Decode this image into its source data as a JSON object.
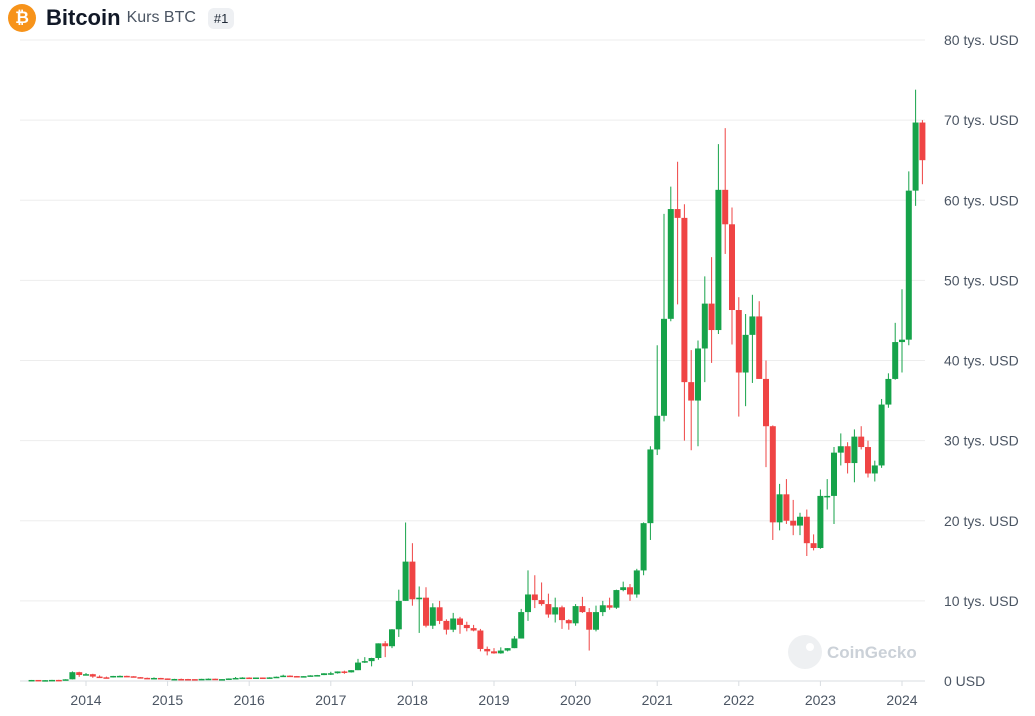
{
  "header": {
    "logo_glyph": "₿",
    "name": "Bitcoin",
    "subtitle": "Kurs BTC",
    "rank": "#1"
  },
  "colors": {
    "logo": "#f7931a",
    "up": "#16a34a",
    "down": "#ef4444",
    "grid": "#ededed"
  },
  "watermark": {
    "text": "CoinGecko",
    "icon": "gecko-icon"
  },
  "chart_data": {
    "type": "candlestick",
    "interval": "month",
    "currency": "USD",
    "ylim": [
      0,
      80000
    ],
    "yticks": [
      {
        "value": 0,
        "label": "0 USD"
      },
      {
        "value": 10000,
        "label": "10 tys. USD"
      },
      {
        "value": 20000,
        "label": "20 tys. USD"
      },
      {
        "value": 30000,
        "label": "30 tys. USD"
      },
      {
        "value": 40000,
        "label": "40 tys. USD"
      },
      {
        "value": 50000,
        "label": "50 tys. USD"
      },
      {
        "value": 60000,
        "label": "60 tys. USD"
      },
      {
        "value": 70000,
        "label": "70 tys. USD"
      },
      {
        "value": 80000,
        "label": "80 tys. USD"
      }
    ],
    "xticks": [
      {
        "date": "2014-01",
        "label": "2014"
      },
      {
        "date": "2015-01",
        "label": "2015"
      },
      {
        "date": "2016-01",
        "label": "2016"
      },
      {
        "date": "2017-01",
        "label": "2017"
      },
      {
        "date": "2018-01",
        "label": "2018"
      },
      {
        "date": "2019-01",
        "label": "2019"
      },
      {
        "date": "2020-01",
        "label": "2020"
      },
      {
        "date": "2021-01",
        "label": "2021"
      },
      {
        "date": "2022-01",
        "label": "2022"
      },
      {
        "date": "2023-01",
        "label": "2023"
      },
      {
        "date": "2024-01",
        "label": "2024"
      }
    ],
    "candles": [
      [
        "2013-05",
        120,
        130,
        95,
        130
      ],
      [
        "2013-06",
        130,
        125,
        85,
        95
      ],
      [
        "2013-07",
        95,
        110,
        65,
        105
      ],
      [
        "2013-08",
        105,
        140,
        100,
        135
      ],
      [
        "2013-09",
        135,
        145,
        120,
        130
      ],
      [
        "2013-10",
        130,
        220,
        125,
        210
      ],
      [
        "2013-11",
        210,
        1200,
        200,
        1100
      ],
      [
        "2013-12",
        1100,
        1150,
        520,
        750
      ],
      [
        "2014-01",
        750,
        1000,
        730,
        850
      ],
      [
        "2014-02",
        850,
        900,
        400,
        550
      ],
      [
        "2014-03",
        550,
        700,
        450,
        460
      ],
      [
        "2014-04",
        460,
        550,
        340,
        450
      ],
      [
        "2014-05",
        450,
        640,
        430,
        630
      ],
      [
        "2014-06",
        630,
        680,
        550,
        640
      ],
      [
        "2014-07",
        640,
        660,
        560,
        590
      ],
      [
        "2014-08",
        590,
        600,
        450,
        480
      ],
      [
        "2014-09",
        480,
        490,
        360,
        390
      ],
      [
        "2014-10",
        390,
        420,
        300,
        330
      ],
      [
        "2014-11",
        330,
        460,
        320,
        380
      ],
      [
        "2014-12",
        380,
        390,
        300,
        320
      ],
      [
        "2015-01",
        320,
        320,
        170,
        220
      ],
      [
        "2015-02",
        220,
        270,
        210,
        255
      ],
      [
        "2015-03",
        255,
        300,
        230,
        245
      ],
      [
        "2015-04",
        245,
        260,
        210,
        235
      ],
      [
        "2015-05",
        235,
        250,
        225,
        230
      ],
      [
        "2015-06",
        230,
        270,
        220,
        265
      ],
      [
        "2015-07",
        265,
        320,
        250,
        285
      ],
      [
        "2015-08",
        285,
        290,
        200,
        230
      ],
      [
        "2015-09",
        230,
        250,
        225,
        236
      ],
      [
        "2015-10",
        236,
        330,
        230,
        315
      ],
      [
        "2015-11",
        315,
        500,
        300,
        380
      ],
      [
        "2015-12",
        380,
        470,
        350,
        430
      ],
      [
        "2016-01",
        430,
        460,
        355,
        370
      ],
      [
        "2016-02",
        370,
        440,
        370,
        435
      ],
      [
        "2016-03",
        435,
        440,
        400,
        415
      ],
      [
        "2016-04",
        415,
        470,
        410,
        450
      ],
      [
        "2016-05",
        450,
        550,
        440,
        530
      ],
      [
        "2016-06",
        530,
        780,
        520,
        670
      ],
      [
        "2016-07",
        670,
        700,
        600,
        620
      ],
      [
        "2016-08",
        620,
        630,
        470,
        575
      ],
      [
        "2016-09",
        575,
        620,
        590,
        608
      ],
      [
        "2016-10",
        608,
        720,
        600,
        700
      ],
      [
        "2016-11",
        700,
        760,
        690,
        740
      ],
      [
        "2016-12",
        740,
        980,
        740,
        960
      ],
      [
        "2017-01",
        960,
        1150,
        750,
        970
      ],
      [
        "2017-02",
        970,
        1200,
        920,
        1190
      ],
      [
        "2017-03",
        1190,
        1290,
        900,
        1080
      ],
      [
        "2017-04",
        1080,
        1350,
        1050,
        1350
      ],
      [
        "2017-05",
        1350,
        2760,
        1350,
        2300
      ],
      [
        "2017-06",
        2300,
        2980,
        2250,
        2480
      ],
      [
        "2017-07",
        2480,
        2900,
        1830,
        2870
      ],
      [
        "2017-08",
        2870,
        4700,
        2650,
        4700
      ],
      [
        "2017-09",
        4700,
        4980,
        2980,
        4340
      ],
      [
        "2017-10",
        4340,
        6470,
        4100,
        6450
      ],
      [
        "2017-11",
        6450,
        11400,
        5500,
        10000
      ],
      [
        "2017-12",
        10000,
        19780,
        10000,
        14900
      ],
      [
        "2018-01",
        14900,
        17200,
        9400,
        10200
      ],
      [
        "2018-02",
        10200,
        11800,
        6000,
        10400
      ],
      [
        "2018-03",
        10400,
        11700,
        6700,
        6900
      ],
      [
        "2018-04",
        6900,
        9700,
        6500,
        9200
      ],
      [
        "2018-05",
        9200,
        10000,
        7100,
        7500
      ],
      [
        "2018-06",
        7500,
        7700,
        5800,
        6400
      ],
      [
        "2018-07",
        6400,
        8500,
        6100,
        7800
      ],
      [
        "2018-08",
        7800,
        8000,
        5900,
        7000
      ],
      [
        "2018-09",
        7000,
        7400,
        6200,
        6600
      ],
      [
        "2018-10",
        6600,
        7000,
        6200,
        6300
      ],
      [
        "2018-11",
        6300,
        6500,
        3700,
        4000
      ],
      [
        "2018-12",
        4000,
        4300,
        3200,
        3700
      ],
      [
        "2019-01",
        3700,
        4100,
        3400,
        3450
      ],
      [
        "2019-02",
        3450,
        4200,
        3400,
        3800
      ],
      [
        "2019-03",
        3800,
        4100,
        3700,
        4100
      ],
      [
        "2019-04",
        4100,
        5600,
        4100,
        5300
      ],
      [
        "2019-05",
        5300,
        9000,
        5300,
        8600
      ],
      [
        "2019-06",
        8600,
        13800,
        7500,
        10800
      ],
      [
        "2019-07",
        10800,
        13200,
        9100,
        10100
      ],
      [
        "2019-08",
        10100,
        12300,
        9400,
        9600
      ],
      [
        "2019-09",
        9600,
        10900,
        7900,
        8300
      ],
      [
        "2019-10",
        8300,
        10400,
        7300,
        9200
      ],
      [
        "2019-11",
        9200,
        9400,
        6500,
        7600
      ],
      [
        "2019-12",
        7600,
        7700,
        6400,
        7200
      ],
      [
        "2020-01",
        7200,
        9600,
        6900,
        9350
      ],
      [
        "2020-02",
        9350,
        10500,
        8500,
        8600
      ],
      [
        "2020-03",
        8600,
        9100,
        3800,
        6400
      ],
      [
        "2020-04",
        6400,
        9400,
        6200,
        8600
      ],
      [
        "2020-05",
        8600,
        10000,
        8100,
        9450
      ],
      [
        "2020-06",
        9450,
        10400,
        8900,
        9150
      ],
      [
        "2020-07",
        9150,
        11400,
        9000,
        11350
      ],
      [
        "2020-08",
        11350,
        12400,
        11200,
        11700
      ],
      [
        "2020-09",
        11700,
        12100,
        10000,
        10800
      ],
      [
        "2020-10",
        10800,
        14000,
        10400,
        13800
      ],
      [
        "2020-11",
        13800,
        19800,
        13200,
        19700
      ],
      [
        "2020-12",
        19700,
        29300,
        17600,
        28900
      ],
      [
        "2021-01",
        28900,
        41900,
        28200,
        33100
      ],
      [
        "2021-02",
        33100,
        58300,
        32400,
        45200
      ],
      [
        "2021-03",
        45200,
        61700,
        44900,
        58900
      ],
      [
        "2021-04",
        58900,
        64800,
        47000,
        57800
      ],
      [
        "2021-05",
        57800,
        59500,
        30000,
        37300
      ],
      [
        "2021-06",
        37300,
        41300,
        28800,
        35000
      ],
      [
        "2021-07",
        35000,
        42500,
        29300,
        41500
      ],
      [
        "2021-08",
        41500,
        50500,
        37300,
        47100
      ],
      [
        "2021-09",
        47100,
        52900,
        39700,
        43800
      ],
      [
        "2021-10",
        43800,
        67000,
        43300,
        61300
      ],
      [
        "2021-11",
        61300,
        69000,
        53300,
        57000
      ],
      [
        "2021-12",
        57000,
        59100,
        42000,
        46300
      ],
      [
        "2022-01",
        46300,
        47900,
        33000,
        38500
      ],
      [
        "2022-02",
        38500,
        45800,
        34300,
        43200
      ],
      [
        "2022-03",
        43200,
        48200,
        37200,
        45500
      ],
      [
        "2022-04",
        45500,
        47400,
        37700,
        37700
      ],
      [
        "2022-05",
        37700,
        40000,
        26700,
        31800
      ],
      [
        "2022-06",
        31800,
        31900,
        17600,
        19800
      ],
      [
        "2022-07",
        19800,
        24600,
        18800,
        23300
      ],
      [
        "2022-08",
        23300,
        25200,
        19600,
        20000
      ],
      [
        "2022-09",
        20000,
        22600,
        18200,
        19400
      ],
      [
        "2022-10",
        19400,
        21000,
        18200,
        20500
      ],
      [
        "2022-11",
        20500,
        21400,
        15600,
        17200
      ],
      [
        "2022-12",
        17200,
        18300,
        16300,
        16600
      ],
      [
        "2023-01",
        16600,
        23900,
        16500,
        23100
      ],
      [
        "2023-02",
        23100,
        25200,
        21400,
        23100
      ],
      [
        "2023-03",
        23100,
        29200,
        19600,
        28500
      ],
      [
        "2023-04",
        28500,
        30900,
        26900,
        29300
      ],
      [
        "2023-05",
        29300,
        29800,
        25900,
        27200
      ],
      [
        "2023-06",
        27200,
        31400,
        24800,
        30500
      ],
      [
        "2023-07",
        30500,
        31800,
        28900,
        29200
      ],
      [
        "2023-08",
        29200,
        30000,
        25400,
        25900
      ],
      [
        "2023-09",
        25900,
        27500,
        24900,
        26900
      ],
      [
        "2023-10",
        26900,
        35200,
        26600,
        34500
      ],
      [
        "2023-11",
        34500,
        38400,
        34100,
        37700
      ],
      [
        "2023-12",
        37700,
        44700,
        37600,
        42300
      ],
      [
        "2024-01",
        42300,
        48900,
        38500,
        42600
      ],
      [
        "2024-02",
        42600,
        63600,
        41900,
        61200
      ],
      [
        "2024-03",
        61200,
        73800,
        59300,
        69700
      ],
      [
        "2024-04",
        69700,
        70000,
        62000,
        65000
      ]
    ]
  }
}
